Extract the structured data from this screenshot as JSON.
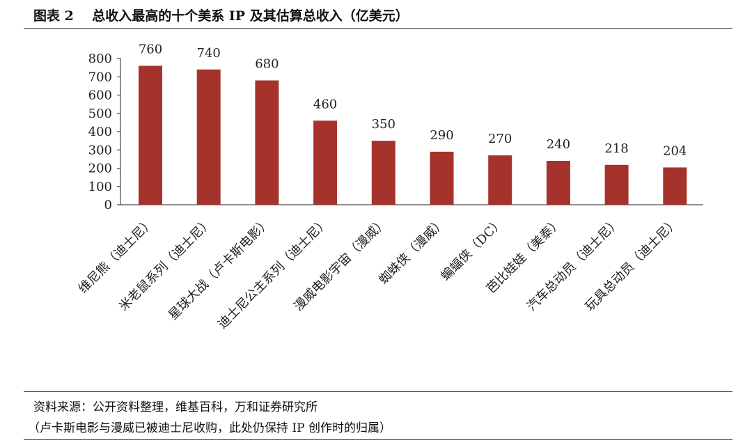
{
  "header": {
    "title": "图表 2    总收入最高的十个美系 IP 及其估算总收入（亿美元）"
  },
  "footer": {
    "source": "资料来源：公开资料整理，维基百科，万和证券研究所",
    "note": "（卢卡斯电影与漫威已被迪士尼收购，此处仍保持 IP 创作时的归属）"
  },
  "chart_data": {
    "type": "bar",
    "title": "总收入最高的十个美系 IP 及其估算总收入（亿美元）",
    "categories": [
      "维尼熊（迪士尼）",
      "米老鼠系列（迪士尼）",
      "星球大战（卢卡斯电影）",
      "迪士尼公主系列（迪士尼）",
      "漫威电影宇宙（漫威）",
      "蜘蛛侠（漫威）",
      "蝙蝠侠（DC）",
      "芭比娃娃（美泰）",
      "汽车总动员（迪士尼）",
      "玩具总动员（迪士尼）"
    ],
    "values": [
      760,
      740,
      680,
      460,
      350,
      290,
      270,
      240,
      218,
      204
    ],
    "yticks": [
      0,
      100,
      200,
      300,
      400,
      500,
      600,
      700,
      800
    ],
    "ylim": [
      0,
      800
    ],
    "xlabel": "",
    "ylabel": "",
    "grid": false,
    "bar_color": "#a5332c"
  }
}
